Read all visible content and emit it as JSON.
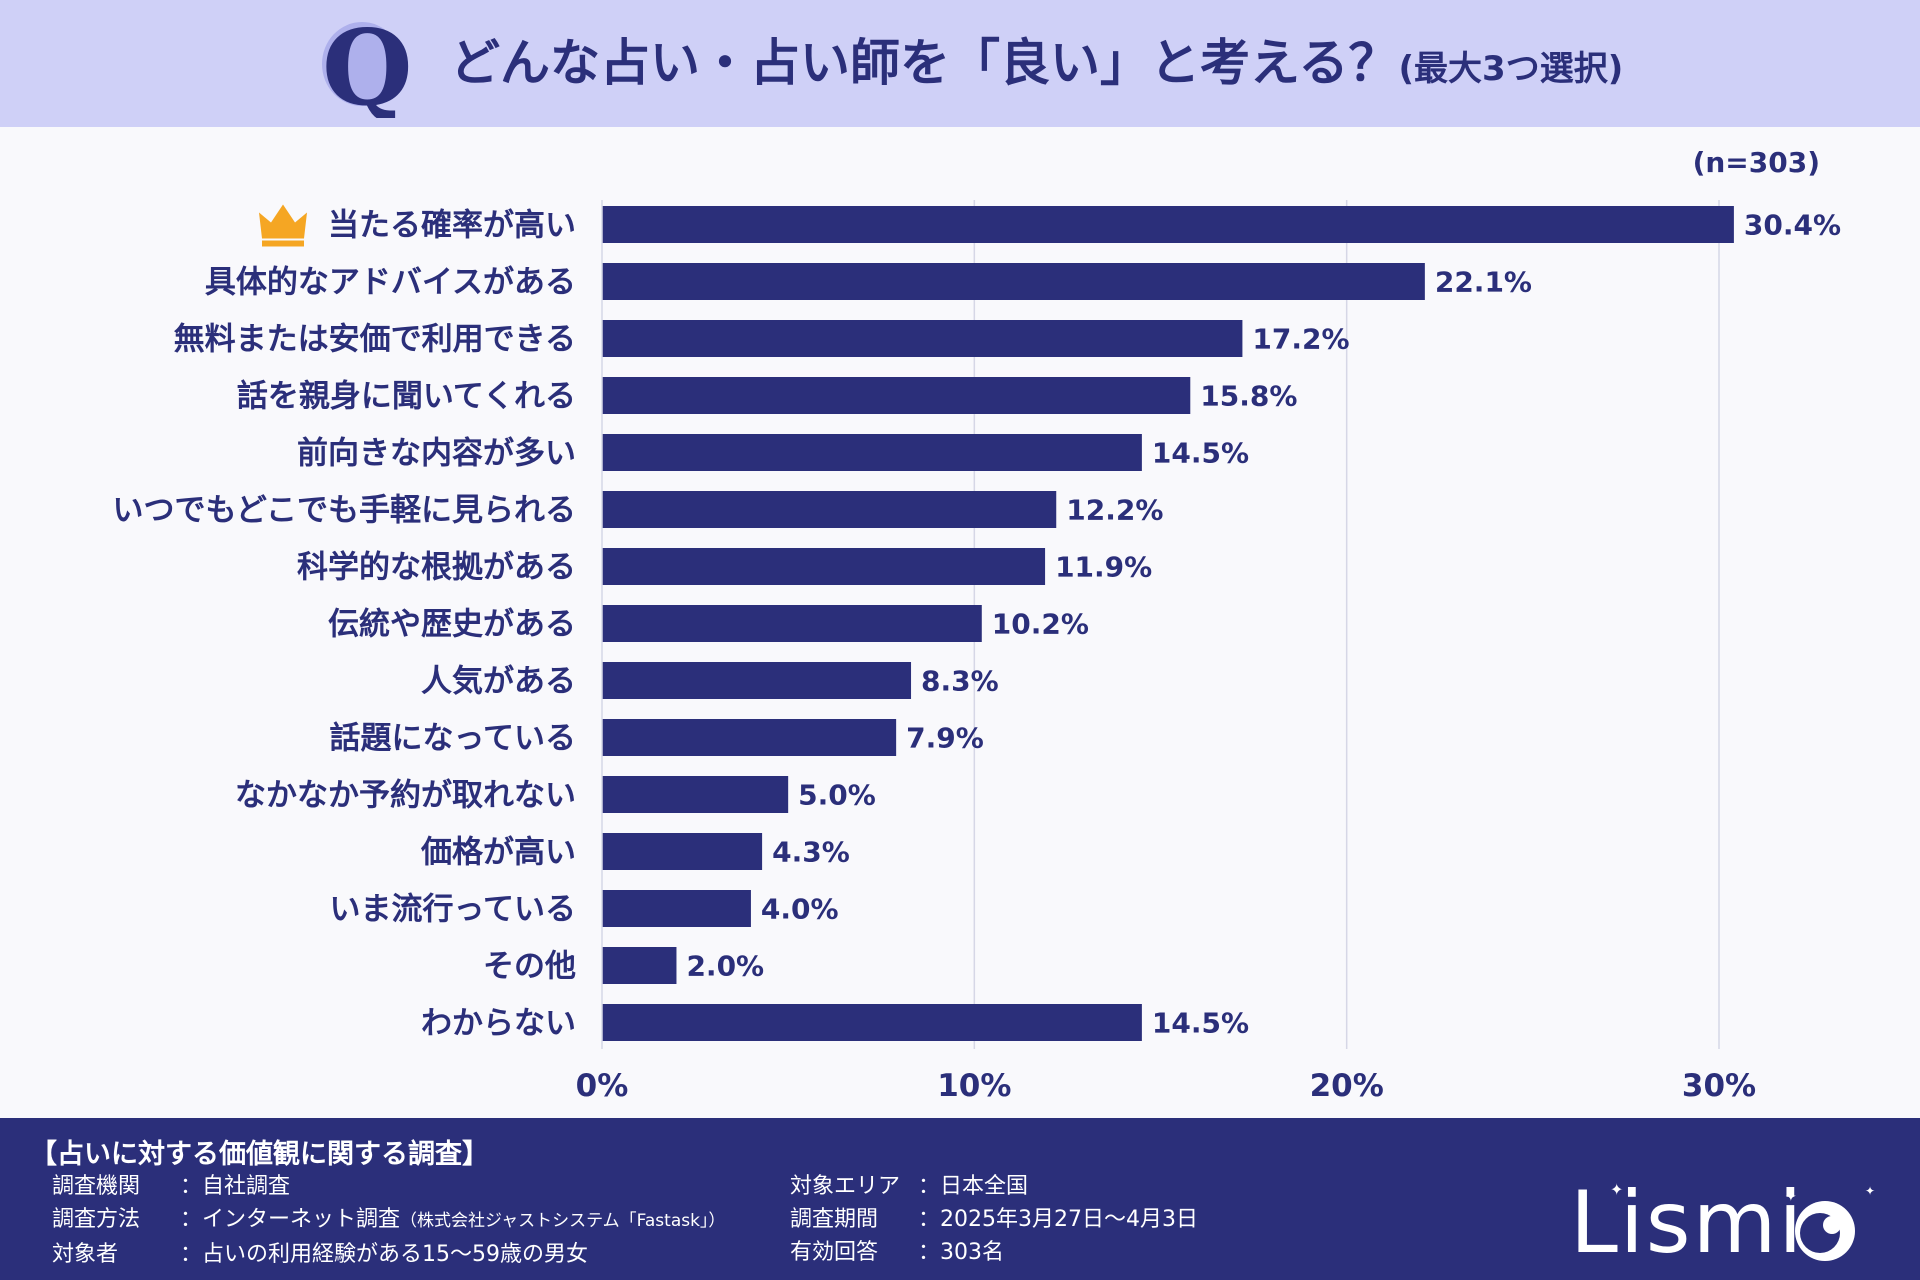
{
  "header": {
    "q_letter": "Q",
    "title": "どんな占い・占い師を「良い」と考える？",
    "subtitle": "(最大3つ選択)"
  },
  "sample_size": "(n=303)",
  "colors": {
    "bar": "#2b2f7a",
    "header_bg": "#cfd0f7",
    "footer_bg": "#2b2f7a",
    "grid": "#d6d7e6",
    "crown": "#f5a623"
  },
  "chart_data": {
    "type": "bar",
    "orientation": "horizontal",
    "categories": [
      "当たる確率が高い",
      "具体的なアドバイスがある",
      "無料または安価で利用できる",
      "話を親身に聞いてくれる",
      "前向きな内容が多い",
      "いつでもどこでも手軽に見られる",
      "科学的な根拠がある",
      "伝統や歴史がある",
      "人気がある",
      "話題になっている",
      "なかなか予約が取れない",
      "価格が高い",
      "いま流行っている",
      "その他",
      "わからない"
    ],
    "values": [
      30.4,
      22.1,
      17.2,
      15.8,
      14.5,
      12.2,
      11.9,
      10.2,
      8.3,
      7.9,
      5.0,
      4.3,
      4.0,
      2.0,
      14.5
    ],
    "value_labels": [
      "30.4%",
      "22.1%",
      "17.2%",
      "15.8%",
      "14.5%",
      "12.2%",
      "11.9%",
      "10.2%",
      "8.3%",
      "7.9%",
      "5.0%",
      "4.3%",
      "4.0%",
      "2.0%",
      "14.5%"
    ],
    "x_ticks": [
      0,
      10,
      20,
      30
    ],
    "x_tick_labels": [
      "0%",
      "10%",
      "20%",
      "30%"
    ],
    "xlim": [
      0,
      30
    ],
    "grid": true,
    "top_item_icon": "crown-icon"
  },
  "footer": {
    "title": "【占いに対する価値観に関する調査】",
    "left_items": [
      {
        "key": "調査機関",
        "value": "：自社調査",
        "note": ""
      },
      {
        "key": "調査方法",
        "value": "：インターネット調査",
        "note": "（株式会社ジャストシステム「Fastask」）"
      },
      {
        "key": "対象者",
        "value": "：占いの利用経験がある15〜59歳の男女",
        "note": ""
      }
    ],
    "right_items": [
      {
        "key": "対象エリア",
        "value": "：日本全国"
      },
      {
        "key": "調査期間",
        "value": "：2025年3月27日〜4月3日"
      },
      {
        "key": "有効回答",
        "value": "：303名"
      }
    ],
    "logo_text": "Lismi"
  }
}
